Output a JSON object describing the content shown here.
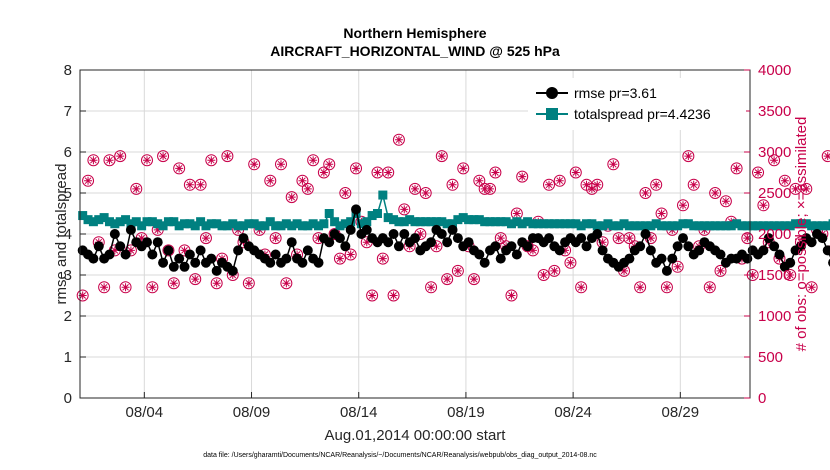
{
  "chart_data": {
    "type": "line",
    "title_line1": "Northern Hemisphere",
    "title_line2": "AIRCRAFT_HORIZONTAL_WIND @ 525 hPa",
    "xlabel": "Aug.01,2014 00:00:00 start",
    "ylabel_left": "rmse and totalspread",
    "ylabel_right": "# of obs: o=possible; ×=assimilated",
    "footnote": "data file: /Users/gharamti/Documents/NCAR/Reanalysis/~/Documents/NCAR/Reanalysis/webpub/obs_diag_output_2014-08.nc",
    "xlim": [
      1.0,
      32.25
    ],
    "ylim_left": [
      0,
      8
    ],
    "ylim_right": [
      0,
      4000
    ],
    "xticks": [
      4,
      9,
      14,
      19,
      24,
      29
    ],
    "xtick_labels": [
      "08/04",
      "08/09",
      "08/14",
      "08/19",
      "08/24",
      "08/29"
    ],
    "yticks_left": [
      0,
      1,
      2,
      3,
      4,
      5,
      6,
      7,
      8
    ],
    "yticks_right": [
      0,
      500,
      1000,
      1500,
      2000,
      2500,
      3000,
      3500,
      4000
    ],
    "legend_location": "top-right",
    "colors": {
      "rmse": "#000000",
      "totalspread": "#008080",
      "obs": "#c8004a"
    },
    "series": [
      {
        "name": "rmse",
        "legend": "rmse pr=3.61",
        "axis": "left",
        "x_start": 1.125,
        "x_step": 0.25,
        "values": [
          3.6,
          3.5,
          3.4,
          3.7,
          3.4,
          3.5,
          4.0,
          3.7,
          3.5,
          4.1,
          3.8,
          3.7,
          3.8,
          3.5,
          3.8,
          3.3,
          3.6,
          3.2,
          3.4,
          3.2,
          3.5,
          3.3,
          3.6,
          3.3,
          3.4,
          3.1,
          3.3,
          3.2,
          3.1,
          3.6,
          3.9,
          3.7,
          3.6,
          3.5,
          3.4,
          3.3,
          3.5,
          3.3,
          3.4,
          3.8,
          3.4,
          3.3,
          3.6,
          3.4,
          3.3,
          3.9,
          3.8,
          4.0,
          3.9,
          3.7,
          4.1,
          4.6,
          4.0,
          4.1,
          3.9,
          3.8,
          3.9,
          3.8,
          4.0,
          3.7,
          4.0,
          3.8,
          3.9,
          3.6,
          3.7,
          3.8,
          4.1,
          4.0,
          3.8,
          4.1,
          3.9,
          3.7,
          3.8,
          3.6,
          3.5,
          3.3,
          3.6,
          3.7,
          3.4,
          3.6,
          3.7,
          3.5,
          3.8,
          3.7,
          3.9,
          3.9,
          3.8,
          3.9,
          3.7,
          3.6,
          3.8,
          3.9,
          3.8,
          3.9,
          3.7,
          3.9,
          4.0,
          3.6,
          3.4,
          3.3,
          3.2,
          3.3,
          3.4,
          3.6,
          3.7,
          4.0,
          3.6,
          3.3,
          3.4,
          3.1,
          3.4,
          3.7,
          3.9,
          3.7,
          3.5,
          3.6,
          3.8,
          3.7,
          3.6,
          3.5,
          3.3,
          3.4,
          3.4,
          3.5,
          3.4,
          3.6,
          3.5,
          3.6,
          3.9,
          3.7,
          3.5,
          3.2,
          3.3,
          3.6,
          3.7,
          3.9,
          3.8,
          4.0,
          3.9,
          3.6,
          3.3,
          3.5,
          3.4,
          3.6,
          3.5,
          3.8,
          3.9,
          3.8,
          3.9,
          3.5,
          3.3,
          3.4,
          3.3,
          3.4,
          3.5,
          3.7,
          3.6,
          3.8,
          3.9,
          4.0,
          3.6,
          3.5,
          3.7,
          3.6,
          3.3,
          3.2,
          3.3,
          3.4,
          3.5,
          3.6,
          3.5,
          3.7,
          3.6,
          3.5,
          3.4,
          3.3,
          3.4,
          3.5,
          3.4,
          3.6,
          3.4,
          3.2,
          3.1,
          3.2,
          3.6,
          3.7,
          3.7,
          3.8,
          3.5,
          3.4,
          3.6,
          3.5,
          3.4,
          4.1,
          3.9,
          3.8,
          3.7,
          3.6,
          3.4,
          3.3,
          3.2,
          3.3,
          3.4,
          3.5,
          3.7,
          3.6,
          3.8,
          3.9,
          4.0,
          3.8,
          3.7,
          3.6,
          3.5,
          3.4,
          3.5,
          3.6,
          3.7,
          3.8,
          3.5,
          3.6,
          3.4,
          3.5,
          3.3,
          3.5,
          3.6,
          3.8,
          3.9,
          3.7,
          3.6,
          3.8,
          3.9,
          3.6,
          3.5,
          3.4,
          3.2,
          3.5,
          3.3,
          3.6,
          3.8,
          3.5,
          3.4,
          3.3,
          3.2,
          3.2,
          3.1,
          3.5,
          3.9,
          3.8,
          3.7,
          3.9,
          3.7,
          3.5,
          3.6
        ]
      },
      {
        "name": "totalspread",
        "legend": "totalspread pr=4.4236",
        "axis": "left",
        "x_start": 1.125,
        "x_step": 0.25,
        "values": [
          4.45,
          4.35,
          4.3,
          4.35,
          4.4,
          4.3,
          4.25,
          4.3,
          4.35,
          4.25,
          4.3,
          4.2,
          4.3,
          4.3,
          4.25,
          4.2,
          4.3,
          4.3,
          4.2,
          4.25,
          4.25,
          4.2,
          4.3,
          4.2,
          4.25,
          4.25,
          4.2,
          4.2,
          4.25,
          4.2,
          4.2,
          4.25,
          4.25,
          4.2,
          4.2,
          4.3,
          4.2,
          4.2,
          4.25,
          4.2,
          4.25,
          4.2,
          4.2,
          4.25,
          4.2,
          4.25,
          4.5,
          4.3,
          4.2,
          4.25,
          4.3,
          4.5,
          4.25,
          4.3,
          4.45,
          4.5,
          4.95,
          4.4,
          4.35,
          4.3,
          4.3,
          4.35,
          4.3,
          4.3,
          4.3,
          4.3,
          4.3,
          4.3,
          4.25,
          4.25,
          4.35,
          4.4,
          4.35,
          4.35,
          4.35,
          4.3,
          4.3,
          4.3,
          4.3,
          4.3,
          4.25,
          4.3,
          4.25,
          4.3,
          4.25,
          4.25,
          4.25,
          4.25,
          4.25,
          4.25,
          4.25,
          4.25,
          4.25,
          4.2,
          4.25,
          4.25,
          4.2,
          4.2,
          4.25,
          4.2,
          4.2,
          4.25,
          4.2,
          4.2,
          4.2,
          4.2,
          4.2,
          4.25,
          4.2,
          4.2,
          4.2,
          4.2,
          4.25,
          4.25,
          4.2,
          4.2,
          4.2,
          4.2,
          4.2,
          4.2,
          4.2,
          4.2,
          4.25,
          4.2,
          4.2,
          4.2,
          4.2,
          4.2,
          4.2,
          4.2,
          4.2,
          4.2,
          4.2,
          4.25,
          4.25,
          4.25,
          4.2,
          4.2,
          4.2,
          4.2,
          4.25,
          4.2,
          4.2,
          4.2,
          4.2,
          4.2,
          4.2,
          4.2,
          4.2,
          4.25,
          4.2,
          4.2,
          4.2,
          4.25,
          4.2,
          4.2,
          4.2,
          4.2,
          4.25,
          4.3,
          4.25,
          4.25,
          4.3,
          4.25,
          4.3,
          4.25,
          4.3,
          4.25,
          4.25,
          4.3,
          4.25,
          4.3,
          4.25,
          4.3,
          4.25,
          4.25,
          4.3,
          4.25,
          4.25,
          4.25,
          4.3,
          4.25,
          4.2,
          4.25,
          4.3,
          4.25,
          4.25,
          4.3,
          4.3,
          4.25,
          4.3,
          4.3,
          4.25,
          4.3,
          4.25,
          4.25,
          4.2,
          4.25,
          4.2,
          4.2,
          4.2,
          4.2,
          4.2,
          4.2,
          4.25,
          4.2,
          4.25,
          4.2,
          4.3,
          4.25,
          4.25,
          4.3,
          4.25,
          4.25,
          4.3,
          4.25,
          4.25,
          4.25,
          4.3,
          4.25,
          4.3,
          4.25,
          4.2,
          4.25,
          4.2,
          4.25,
          4.25,
          4.2,
          4.2,
          4.25,
          4.2,
          4.25,
          4.2,
          4.2,
          4.2,
          4.25,
          4.2,
          4.2,
          4.2,
          4.2,
          4.2,
          4.25,
          4.2,
          4.2,
          4.2,
          4.25,
          4.2,
          4.2,
          4.2,
          4.2
        ]
      },
      {
        "name": "obs_possible",
        "axis": "right",
        "x_start": 1.125,
        "x_step": 0.25,
        "values": [
          1250,
          2650,
          2900,
          1900,
          1350,
          2900,
          1800,
          2950,
          1350,
          1800,
          2550,
          1950,
          2900,
          1350,
          2050,
          2950,
          1800,
          1400,
          2800,
          1800,
          2600,
          1450,
          2600,
          1950,
          2900,
          1400,
          1700,
          2950,
          1500,
          2050,
          1900,
          1400,
          2850,
          2050,
          1750,
          2650,
          1950,
          2850,
          1400,
          2450,
          1750,
          2650,
          2550,
          2900,
          1950,
          2750,
          2850,
          2000,
          1700,
          2500,
          1750,
          2800,
          2150,
          1900,
          1250,
          2750,
          1700,
          2750,
          1250,
          3150,
          2300,
          1850,
          2550,
          2000,
          2500,
          1350,
          1850,
          2950,
          1450,
          2600,
          1550,
          2800,
          1850,
          1450,
          2650,
          2550,
          2550,
          2750,
          1950,
          1850,
          1250,
          2250,
          2700,
          1850,
          1800,
          2150,
          1500,
          2600,
          1550,
          2650,
          1800,
          1650,
          2750,
          1350,
          2600,
          2550,
          2600,
          1900,
          2100,
          2850,
          1950,
          1550,
          1950,
          1850,
          1350,
          2500,
          1950,
          2600,
          2250,
          1350,
          2050,
          1600,
          2350,
          2950,
          2600,
          1850,
          2050,
          1350,
          2500,
          1550,
          2400,
          2150,
          2800,
          1700,
          1950,
          1500,
          2750,
          2350,
          1900,
          2900,
          1700,
          2650,
          1500,
          2550,
          1900,
          2550,
          1350,
          2050,
          2000,
          2950,
          1800,
          2750,
          2350,
          1700,
          1300,
          2650,
          2500,
          2700,
          2000,
          1600,
          2650,
          1300,
          2350,
          2900,
          2200,
          1700,
          2900,
          2650,
          1400,
          2650,
          2800,
          2550,
          2900,
          2100,
          1800,
          2500,
          2800,
          1950,
          1800,
          2600,
          2000,
          1900,
          1300,
          1950,
          2000,
          1950,
          1350,
          1950,
          1700,
          2850,
          1950,
          2050,
          2750,
          2800,
          2000,
          2200,
          1850,
          1900,
          1900,
          1350,
          2900,
          2550,
          1700,
          2050,
          1500,
          1950,
          1850,
          2200,
          1800,
          1850,
          2950,
          1950,
          2650,
          1550,
          2200,
          2550,
          1750,
          2750,
          2800,
          1850,
          1900,
          2950,
          2600,
          1950,
          2150,
          1300,
          1850,
          2150,
          1950,
          2200,
          1350,
          2000,
          2150,
          1350,
          2500,
          1950,
          2600,
          1850,
          1750,
          2050,
          1950,
          1650,
          2300,
          1800,
          2250,
          1900,
          1700,
          2100,
          2550,
          1850,
          2750,
          2600,
          2050,
          2100,
          1900,
          2050,
          2200,
          1700,
          2650,
          2050,
          1900,
          1950,
          2000,
          2050,
          2000,
          1850,
          0
        ]
      }
    ]
  }
}
